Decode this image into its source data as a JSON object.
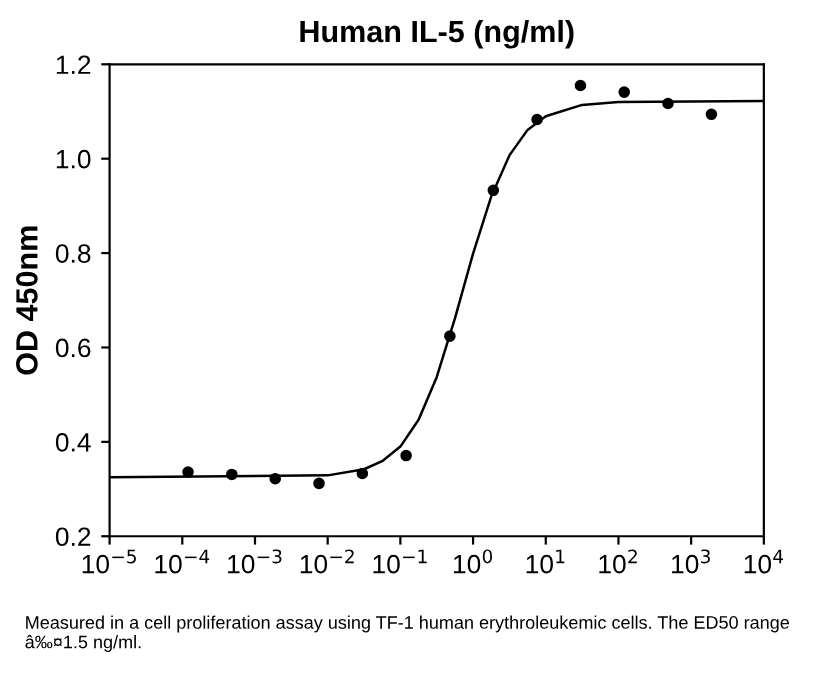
{
  "chart_data": {
    "type": "scatter",
    "title": "Human IL-5 (ng/ml)",
    "ylabel": "OD 450nm",
    "log": "x",
    "series": [
      {
        "color": "#000000",
        "marker": "circle",
        "x": [
          0.00012,
          0.00048,
          0.0019,
          0.0076,
          0.03,
          0.12,
          0.48,
          1.9,
          7.6,
          30,
          120,
          480,
          1900
        ],
        "values": [
          0.336,
          0.331,
          0.322,
          0.312,
          0.333,
          0.371,
          0.624,
          0.933,
          1.083,
          1.155,
          1.141,
          1.117,
          1.094
        ]
      },
      {
        "type": "line",
        "color": "#000000",
        "marker": "none",
        "line_style": "solid",
        "x": [
          1e-05,
          0.01,
          0.0316,
          0.0562,
          0.1,
          0.178,
          0.316,
          0.562,
          1,
          1.78,
          3.16,
          5.62,
          10,
          31.6,
          100,
          10000
        ],
        "values": [
          0.325,
          0.329,
          0.342,
          0.359,
          0.39,
          0.447,
          0.537,
          0.661,
          0.799,
          0.92,
          1.007,
          1.061,
          1.09,
          1.114,
          1.12,
          1.122
        ]
      }
    ],
    "xlim": [
      1e-05,
      10000
    ],
    "xticks": [
      {
        "value": 1e-05,
        "label": "10$^{−5}$"
      },
      {
        "value": 0.0001,
        "label": "10$^{−4}$"
      },
      {
        "value": 0.001,
        "label": "10$^{−3}$"
      },
      {
        "value": 0.01,
        "label": "10$^{−2}$"
      },
      {
        "value": 0.1,
        "label": "10$^{−1}$"
      },
      {
        "value": 1,
        "label": "10$^{0}$"
      },
      {
        "value": 10,
        "label": "10$^{1}$"
      },
      {
        "value": 100,
        "label": "10$^{2}$"
      },
      {
        "value": 1000,
        "label": "10$^{3}$"
      },
      {
        "value": 10000,
        "label": "10$^{4}$"
      }
    ],
    "ylim": [
      0.2,
      1.2
    ],
    "yticks": [
      {
        "value": 0.2,
        "label": "0.2"
      },
      {
        "value": 0.4,
        "label": "0.4"
      },
      {
        "value": 0.6,
        "label": "0.6"
      },
      {
        "value": 0.8,
        "label": "0.8"
      },
      {
        "value": 1.0,
        "label": "1.0"
      },
      {
        "value": 1.2,
        "label": "1.2"
      }
    ],
    "grid": false,
    "annotations": [
      "Measured in a cell proliferation assay using TF-1 human erythroleukemic cells. The ED50 range â‰¤1.5 ng/ml."
    ]
  }
}
